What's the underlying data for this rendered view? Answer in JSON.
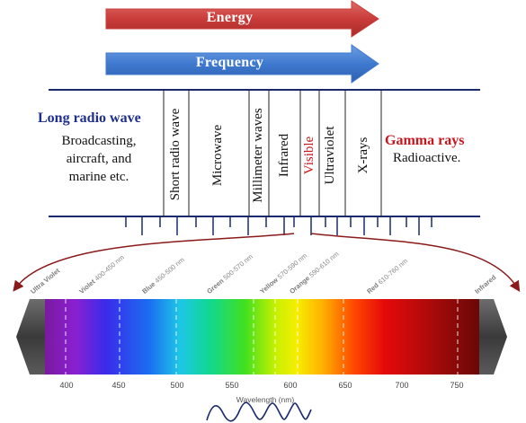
{
  "arrows": {
    "energy": {
      "label": "Energy",
      "color": "#c93c3a"
    },
    "frequency": {
      "label": "Frequency",
      "color": "#3f7ad0"
    }
  },
  "left_band": {
    "title": "Long radio wave",
    "lines": [
      "Broadcasting,",
      "aircraft, and",
      "marine etc."
    ]
  },
  "right_band": {
    "title": "Gamma rays",
    "subtitle": "Radioactive."
  },
  "bands": [
    {
      "label": "Short radio wave",
      "color": "#111111"
    },
    {
      "label": "Microwave",
      "color": "#111111"
    },
    {
      "label": "Millimeter waves",
      "color": "#111111"
    },
    {
      "label": "Infrared",
      "color": "#111111"
    },
    {
      "label": "Visible",
      "color": "#c8161d"
    },
    {
      "label": "Ultraviolet",
      "color": "#111111"
    },
    {
      "label": "X-rays",
      "color": "#111111"
    }
  ],
  "spectrum": {
    "colors": [
      {
        "name": "Ultra Violet",
        "range": ""
      },
      {
        "name": "Violet",
        "range": "400-450 nm"
      },
      {
        "name": "Blue",
        "range": "450-500 nm"
      },
      {
        "name": "Green",
        "range": "500-570 nm"
      },
      {
        "name": "Yellow",
        "range": "570-590 nm"
      },
      {
        "name": "Orange",
        "range": "590-610 nm"
      },
      {
        "name": "Red",
        "range": "610-760 nm"
      },
      {
        "name": "Infrared",
        "range": ""
      }
    ],
    "ticks": [
      "400",
      "450",
      "500",
      "550",
      "600",
      "650",
      "700",
      "750"
    ],
    "axis_label": "Wavelength (nm)"
  }
}
